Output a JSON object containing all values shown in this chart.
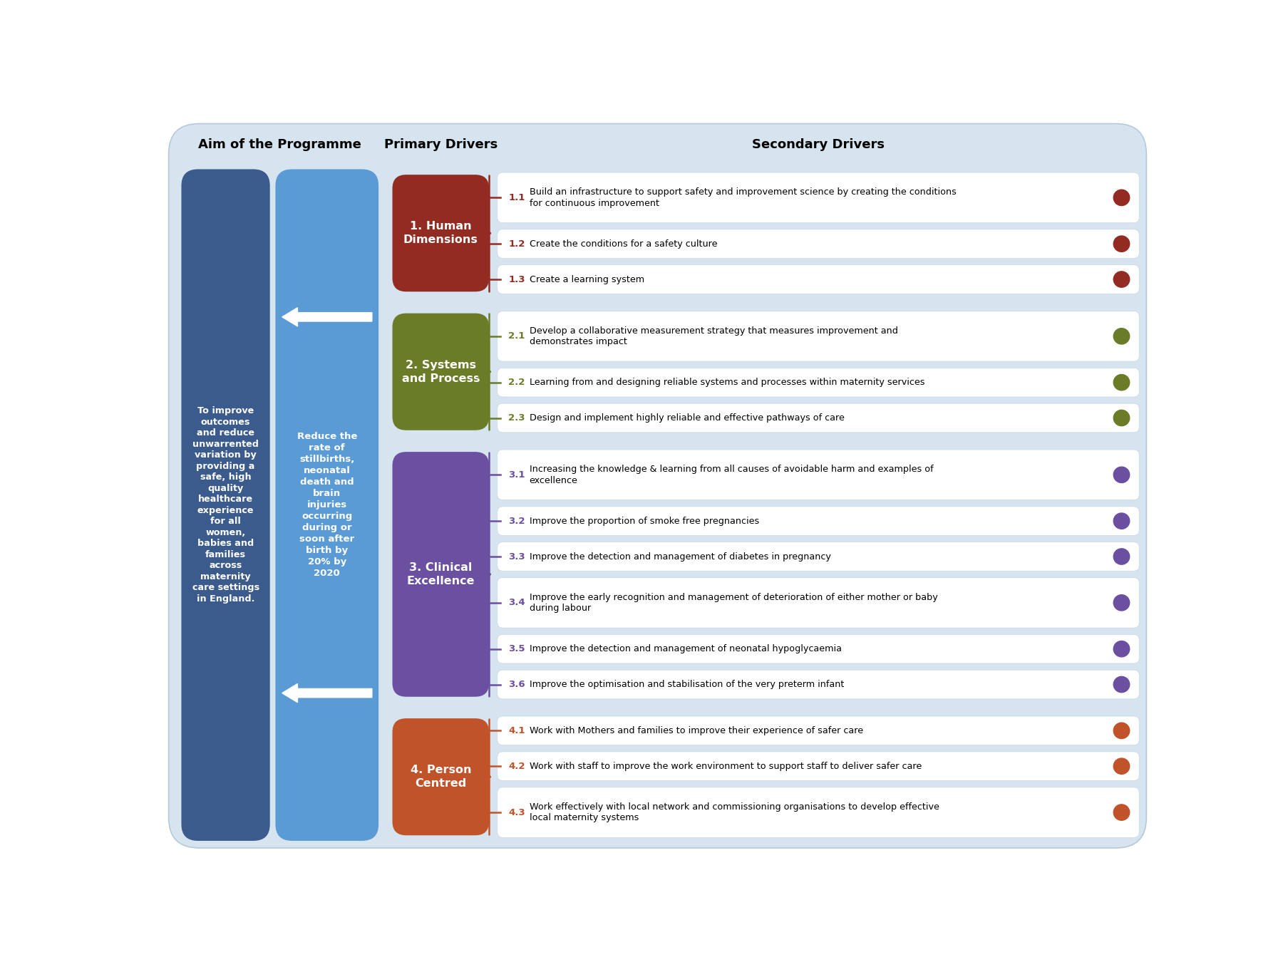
{
  "title_aim": "Aim of the Programme",
  "title_primary": "Primary Drivers",
  "title_secondary": "Secondary Drivers",
  "aim_text": "To improve\noutcomes\nand reduce\nunwarrented\nvariation by\nproviding a\nsafe, high\nquality\nhealthcare\nexperience\nfor all\nwomen,\nbabies and\nfamilies\nacross\nmaternity\ncare settings\nin England.",
  "aim_text2": "Reduce the\nrate of\nstillbirths,\nneonatal\ndeath and\nbrain\ninjuries\noccurring\nduring or\nsoon after\nbirth by\n20% by\n2020",
  "outer_bg": "#D6E4F0",
  "dark_blue": "#3A5B8C",
  "light_blue": "#5B9BD5",
  "primary_drivers": [
    {
      "label": "1. Human\nDimensions",
      "color": "#922B21"
    },
    {
      "label": "2. Systems\nand Process",
      "color": "#6B7C29"
    },
    {
      "label": "3. Clinical\nExcellence",
      "color": "#6B4FA0"
    },
    {
      "label": "4. Person\nCentred",
      "color": "#C0532A"
    }
  ],
  "secondary_drivers": [
    {
      "num": "1.1",
      "text": "Build an infrastructure to support safety and improvement science by creating the conditions\nfor continuous improvement",
      "color": "#922B21",
      "group": 0,
      "two_line": true
    },
    {
      "num": "1.2",
      "text": "Create the conditions for a safety culture",
      "color": "#922B21",
      "group": 0,
      "two_line": false
    },
    {
      "num": "1.3",
      "text": "Create a learning system",
      "color": "#922B21",
      "group": 0,
      "two_line": false
    },
    {
      "num": "2.1",
      "text": "Develop a collaborative measurement strategy that measures improvement and\ndemonstrates impact",
      "color": "#6B7C29",
      "group": 1,
      "two_line": true
    },
    {
      "num": "2.2",
      "text": "Learning from and designing reliable systems and processes within maternity services",
      "color": "#6B7C29",
      "group": 1,
      "two_line": false
    },
    {
      "num": "2.3",
      "text": "Design and implement highly reliable and effective pathways of care",
      "color": "#6B7C29",
      "group": 1,
      "two_line": false
    },
    {
      "num": "3.1",
      "text": "Increasing the knowledge & learning from all causes of avoidable harm and examples of\nexcellence",
      "color": "#6B4FA0",
      "group": 2,
      "two_line": true
    },
    {
      "num": "3.2",
      "text": "Improve the proportion of smoke free pregnancies",
      "color": "#6B4FA0",
      "group": 2,
      "two_line": false
    },
    {
      "num": "3.3",
      "text": "Improve the detection and management of diabetes in pregnancy",
      "color": "#6B4FA0",
      "group": 2,
      "two_line": false
    },
    {
      "num": "3.4",
      "text": "Improve the early recognition and management of deterioration of either mother or baby\nduring labour",
      "color": "#6B4FA0",
      "group": 2,
      "two_line": true
    },
    {
      "num": "3.5",
      "text": "Improve the detection and management of neonatal hypoglycaemia",
      "color": "#6B4FA0",
      "group": 2,
      "two_line": false
    },
    {
      "num": "3.6",
      "text": "Improve the optimisation and stabilisation of the very preterm infant",
      "color": "#6B4FA0",
      "group": 2,
      "two_line": false
    },
    {
      "num": "4.1",
      "text": "Work with Mothers and families to improve their experience of safer care",
      "color": "#C0532A",
      "group": 3,
      "two_line": false
    },
    {
      "num": "4.2",
      "text": "Work with staff to improve the work environment to support staff to deliver safer care",
      "color": "#C0532A",
      "group": 3,
      "two_line": false
    },
    {
      "num": "4.3",
      "text": "Work effectively with local network and commissioning organisations to develop effective\nlocal maternity systems",
      "color": "#C0532A",
      "group": 3,
      "two_line": true
    }
  ],
  "group_row_spans": [
    [
      0,
      1,
      2
    ],
    [
      3,
      4,
      5
    ],
    [
      6,
      7,
      8,
      9,
      10,
      11
    ],
    [
      12,
      13,
      14
    ]
  ]
}
